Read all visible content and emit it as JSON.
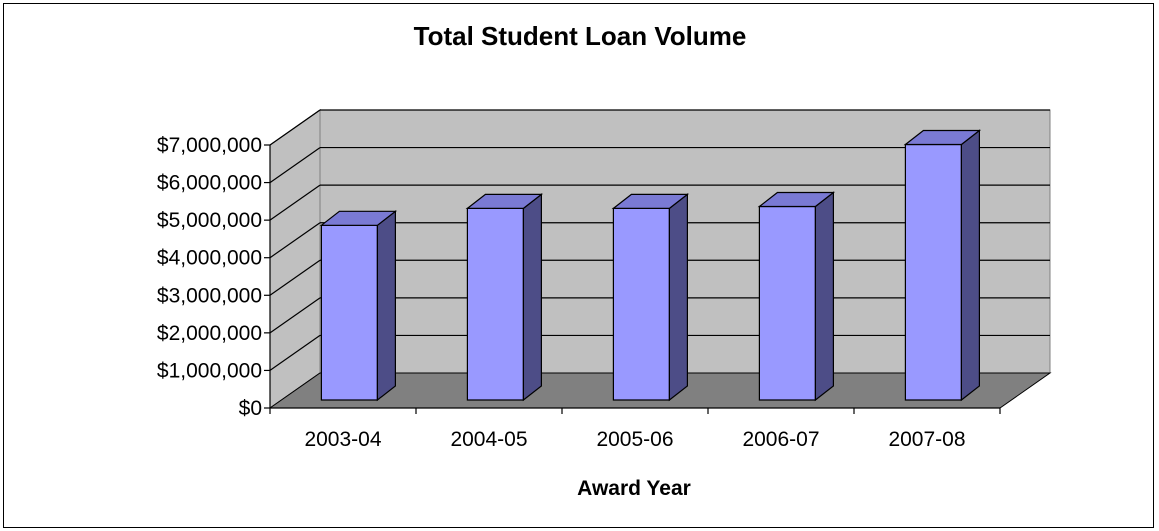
{
  "chart_data": {
    "type": "bar",
    "title": "Total Student Loan Volume",
    "xlabel": "Award Year",
    "ylabel": "",
    "categories": [
      "2003-04",
      "2004-05",
      "2005-06",
      "2006-07",
      "2007-08"
    ],
    "values": [
      4650000,
      5100000,
      5100000,
      5150000,
      6800000
    ],
    "ylim": [
      0,
      7000000
    ],
    "yticks": [
      0,
      1000000,
      2000000,
      3000000,
      4000000,
      5000000,
      6000000,
      7000000
    ],
    "ytick_labels": [
      "$0",
      "$1,000,000",
      "$2,000,000",
      "$3,000,000",
      "$4,000,000",
      "$5,000,000",
      "$6,000,000",
      "$7,000,000"
    ],
    "grid": true,
    "legend": "none",
    "style": "3d",
    "colors": {
      "bar_front": "#9999ff",
      "bar_side": "#4d4d87",
      "bar_top": "#7a7ad4",
      "wall": "#c0c0c0",
      "floor": "#808080",
      "grid": "#000000"
    }
  }
}
